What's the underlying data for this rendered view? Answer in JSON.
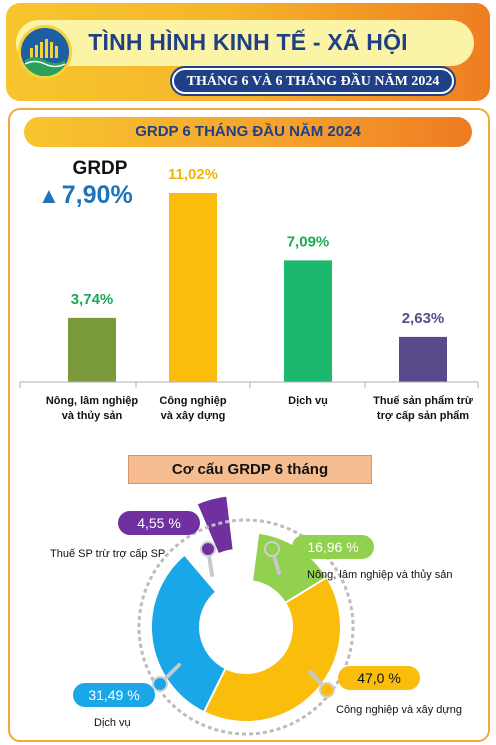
{
  "header": {
    "title": "TÌNH HÌNH KINH TẾ - XÃ HỘI",
    "subtitle": "THÁNG 6 VÀ 6 THÁNG ĐẦU NĂM 2024"
  },
  "grdp": {
    "label": "GRDP",
    "arrow": "▲",
    "value": "7,90%"
  },
  "pie_section_title": "Cơ cấu GRDP 6 tháng",
  "chart_data": [
    {
      "type": "bar",
      "title": "GRDP 6 THÁNG ĐẦU NĂM 2024",
      "categories": [
        [
          "Nông, lâm nghiệp",
          "và thủy sản"
        ],
        [
          "Công nghiệp",
          "và xây dựng"
        ],
        [
          "Dịch vụ"
        ],
        [
          "Thuế sản phẩm trừ",
          "trợ cấp sản phẩm"
        ]
      ],
      "values": [
        3.74,
        11.02,
        7.09,
        2.63
      ],
      "labels": [
        "3,74%",
        "11,02%",
        "7,09%",
        "2,63%"
      ],
      "colors": [
        "#7a9a3b",
        "#fbbd0c",
        "#1cb86e",
        "#5a4a8c"
      ],
      "label_colors": [
        "#1ca855",
        "#f4b400",
        "#1ca855",
        "#5a4a8c"
      ],
      "ylim": [
        0,
        12
      ]
    },
    {
      "type": "pie",
      "title": "Cơ cấu GRDP 6 tháng",
      "slices": [
        {
          "name": "Thuế SP trừ trợ cấp SP",
          "value": 4.55,
          "label": "4,55 %",
          "color": "#7030a0"
        },
        {
          "name": "Nông, lâm nghiệp và thủy sản",
          "value": 16.96,
          "label": "16,96 %",
          "color": "#92d050"
        },
        {
          "name": "Công nghiệp và xây dựng",
          "value": 47.0,
          "label": "47,0 %",
          "color": "#fbbd0c"
        },
        {
          "name": "Dịch vụ",
          "value": 31.49,
          "label": "31,49 %",
          "color": "#1aa7e8"
        }
      ]
    }
  ]
}
